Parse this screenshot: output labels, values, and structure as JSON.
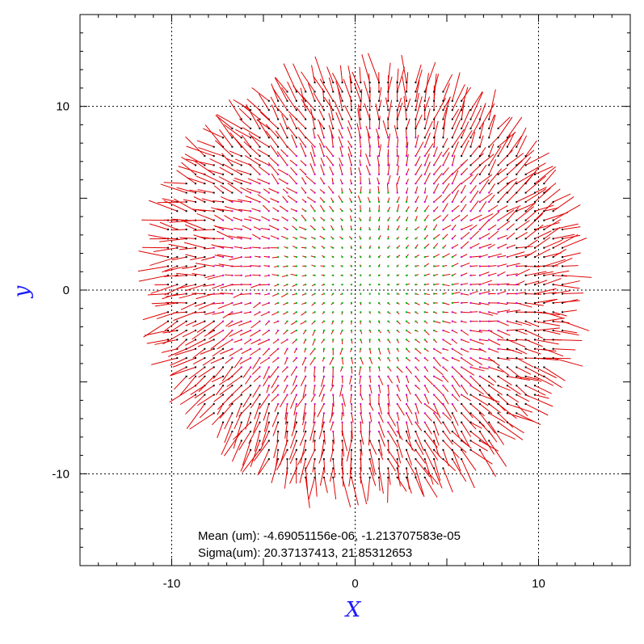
{
  "chart_data": {
    "type": "quiver",
    "xlabel": "X",
    "ylabel": "y",
    "xlim": [
      -15,
      15
    ],
    "ylim": [
      -15,
      15
    ],
    "x_ticks": [
      -10,
      0,
      10
    ],
    "y_ticks": [
      -10,
      0,
      10
    ],
    "x_tick_labels": [
      "-10",
      "0",
      "10"
    ],
    "y_tick_labels": [
      "-10",
      "0",
      "10"
    ],
    "grid": true,
    "field": {
      "shape": "disk",
      "center": [
        0.5,
        0.5
      ],
      "radius": 11.2,
      "grid_step": 0.5,
      "pattern": "radial distortion, small near centre, growing toward the rim"
    },
    "colors": {
      "vector": "#e00000",
      "marker_low": "#00b000",
      "marker_mid": "#cc00cc",
      "marker_high": "#000000",
      "axis_title": "#1a1aff",
      "grid": "#000000"
    },
    "annotations": [
      "Mean (um): -4.69051156e-06, -1.213707583e-05",
      "Sigma(um): 20.37137413, 21.85312653"
    ]
  }
}
